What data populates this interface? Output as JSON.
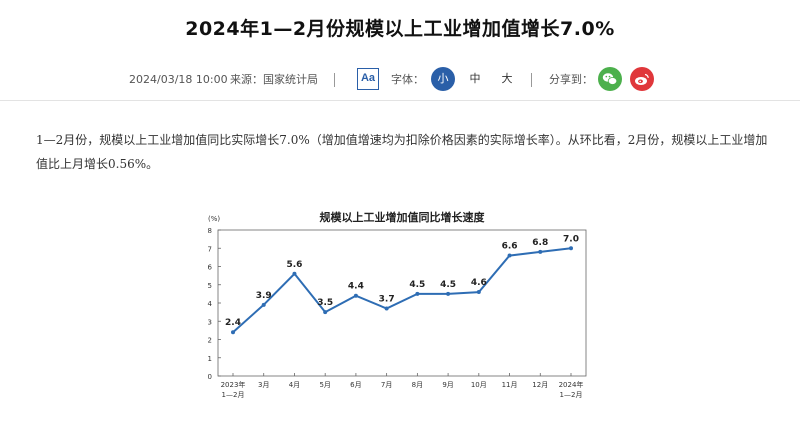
{
  "article": {
    "title": "2024年1—2月份规模以上工业增加值增长7.0%",
    "date": "2024/03/18 10:00",
    "source": "来源：国家统计局",
    "font_toggle_label": "Aa",
    "font_size_label": "字体：",
    "font_sizes": [
      "小",
      "中",
      "大"
    ],
    "share_label": "分享到：",
    "share_icons": [
      "wechat-icon",
      "weibo-icon"
    ],
    "accent_color": "#2a5fa8",
    "paragraph": "1—2月份，规模以上工业增加值同比实际增长7.0%（增加值增速均为扣除价格因素的实际增长率）。从环比看，2月份，规模以上工业增加值比上月增长0.56%。"
  },
  "chart_data": {
    "type": "line",
    "title": "规模以上工业增加值同比增长速度",
    "ylabel": "(%)",
    "ylim": [
      0,
      8
    ],
    "yticks": [
      0,
      1,
      2,
      3,
      4,
      5,
      6,
      7,
      8
    ],
    "categories": [
      [
        "2023年",
        "1—2月"
      ],
      [
        "3月"
      ],
      [
        "4月"
      ],
      [
        "5月"
      ],
      [
        "6月"
      ],
      [
        "7月"
      ],
      [
        "8月"
      ],
      [
        "9月"
      ],
      [
        "10月"
      ],
      [
        "11月"
      ],
      [
        "12月"
      ],
      [
        "2024年",
        "1—2月"
      ]
    ],
    "values": [
      2.4,
      3.9,
      5.6,
      3.5,
      4.4,
      3.7,
      4.5,
      4.5,
      4.6,
      6.6,
      6.8,
      7.0
    ],
    "data_labels": [
      "2.4",
      "3.9",
      "5.6",
      "3.5",
      "4.4",
      "3.7",
      "4.5",
      "4.5",
      "4.6",
      "6.6",
      "6.8",
      "7.0"
    ],
    "line_color": "#2e6db4",
    "grid": false
  }
}
